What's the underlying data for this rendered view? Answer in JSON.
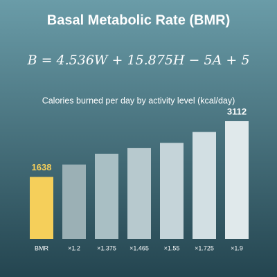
{
  "chart_data": {
    "type": "bar",
    "title": "Basal Metabolic Rate (BMR)",
    "formula": "B = 4.536W + 15.875H − 5A + 5",
    "subtitle": "Calories burned per day by activity level (kcal/day)",
    "categories": [
      "BMR",
      "×1.2",
      "×1.375",
      "×1.465",
      "×1.55",
      "×1.725",
      "×1.9"
    ],
    "values": [
      1638,
      1966,
      2252,
      2400,
      2539,
      2826,
      3112
    ],
    "value_labels": [
      "1638",
      null,
      null,
      null,
      null,
      null,
      "3112"
    ],
    "colors": [
      "#f5cf5a",
      "#9bb0b5",
      "#a9bfc4",
      "#b7c9ce",
      "#c5d4d9",
      "#d2dfe3",
      "#e0e9eb"
    ],
    "label_colors": [
      "#f5cf5a",
      null,
      null,
      null,
      null,
      null,
      "#ffffff"
    ]
  }
}
